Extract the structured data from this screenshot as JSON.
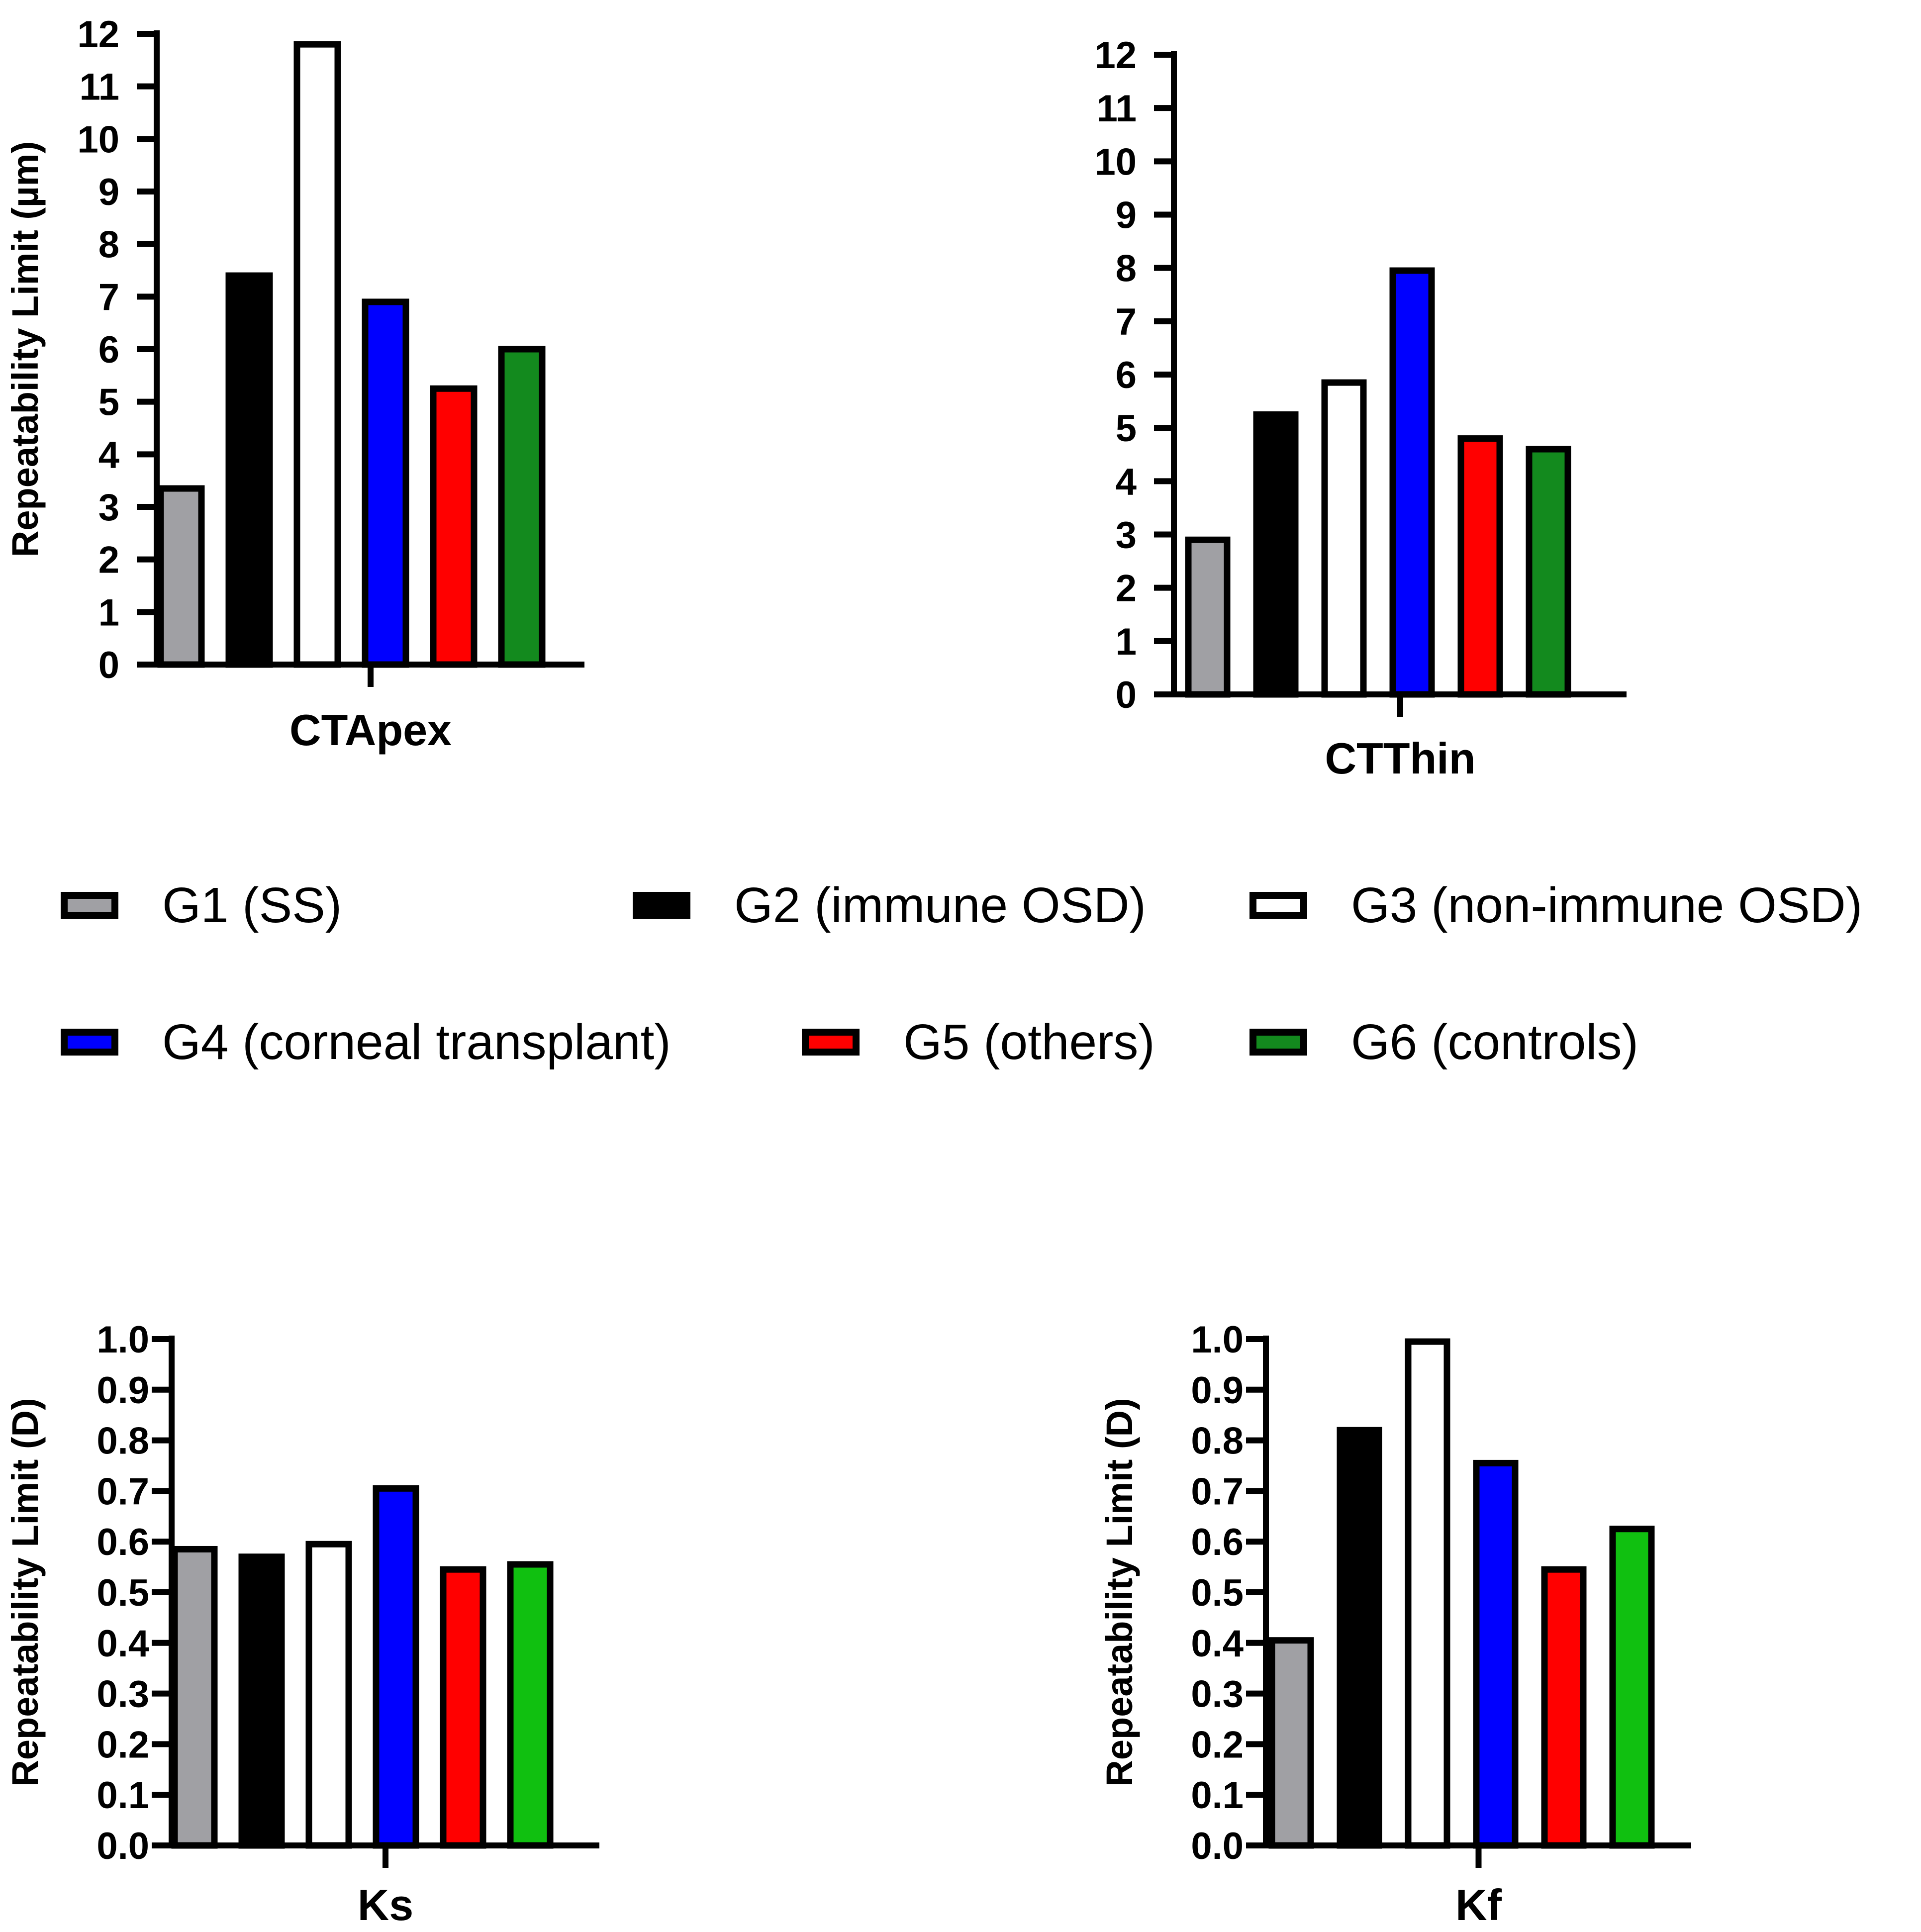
{
  "groups": [
    {
      "key": "g1",
      "label": "G1 (SS)",
      "color": "#a0a0a4"
    },
    {
      "key": "g2",
      "label": "G2 (immune OSD)",
      "color": "#000000"
    },
    {
      "key": "g3",
      "label": "G3 (non-immune OSD)",
      "color": "#ffffff"
    },
    {
      "key": "g4",
      "label": "G4 (corneal transplant)",
      "color": "#0000ff"
    },
    {
      "key": "g5",
      "label": "G5 (others)",
      "color": "#ff0000"
    },
    {
      "key": "g6",
      "label": "G6 (controls)",
      "color": "#138a1e"
    }
  ],
  "chart_data": [
    {
      "id": "ctapex",
      "type": "bar",
      "title": "",
      "xlabel": "CTApex",
      "ylabel": "Repeatability Limit (µm)",
      "ylim": [
        0,
        12
      ],
      "yticks": [
        "0",
        "1",
        "2",
        "3",
        "4",
        "5",
        "6",
        "7",
        "8",
        "9",
        "10",
        "11",
        "12"
      ],
      "categories": [
        "G1 (SS)",
        "G2 (immune OSD)",
        "G3 (non-immune OSD)",
        "G4 (corneal transplant)",
        "G5 (others)",
        "G6 (controls)"
      ],
      "values": [
        3.35,
        7.4,
        11.8,
        6.9,
        5.25,
        6.0
      ],
      "colors": [
        "#a0a0a4",
        "#000000",
        "#ffffff",
        "#0000ff",
        "#ff0000",
        "#138a1e"
      ]
    },
    {
      "id": "ctthin",
      "type": "bar",
      "title": "",
      "xlabel": "CTThin",
      "ylabel": "",
      "ylim": [
        0,
        12
      ],
      "yticks": [
        "0",
        "1",
        "2",
        "3",
        "4",
        "5",
        "6",
        "7",
        "8",
        "9",
        "10",
        "11",
        "12"
      ],
      "categories": [
        "G1 (SS)",
        "G2 (immune OSD)",
        "G3 (non-immune OSD)",
        "G4 (corneal transplant)",
        "G5 (others)",
        "G6 (controls)"
      ],
      "values": [
        2.9,
        5.25,
        5.85,
        7.95,
        4.8,
        4.6
      ],
      "colors": [
        "#a0a0a4",
        "#000000",
        "#ffffff",
        "#0000ff",
        "#ff0000",
        "#138a1e"
      ]
    },
    {
      "id": "ks",
      "type": "bar",
      "title": "",
      "xlabel": "Ks",
      "ylabel": "Repeatability Limit (D)",
      "ylim": [
        0,
        1.0
      ],
      "yticks": [
        "0.0",
        "0.1",
        "0.2",
        "0.3",
        "0.4",
        "0.5",
        "0.6",
        "0.7",
        "0.8",
        "0.9",
        "1.0"
      ],
      "categories": [
        "G1 (SS)",
        "G2 (immune OSD)",
        "G3 (non-immune OSD)",
        "G4 (corneal transplant)",
        "G5 (others)",
        "G6 (controls)"
      ],
      "values": [
        0.585,
        0.57,
        0.595,
        0.705,
        0.545,
        0.555
      ],
      "colors": [
        "#a0a0a4",
        "#000000",
        "#ffffff",
        "#0000ff",
        "#ff0000",
        "#10c010"
      ]
    },
    {
      "id": "kf",
      "type": "bar",
      "title": "",
      "xlabel": "Kf",
      "ylabel": "Repeatability Limit (D)",
      "ylim": [
        0,
        1.0
      ],
      "yticks": [
        "0.0",
        "0.1",
        "0.2",
        "0.3",
        "0.4",
        "0.5",
        "0.6",
        "0.7",
        "0.8",
        "0.9",
        "1.0"
      ],
      "categories": [
        "G1 (SS)",
        "G2 (immune OSD)",
        "G3 (non-immune OSD)",
        "G4 (corneal transplant)",
        "G5 (others)",
        "G6 (controls)"
      ],
      "values": [
        0.405,
        0.82,
        0.995,
        0.755,
        0.545,
        0.625
      ],
      "colors": [
        "#a0a0a4",
        "#000000",
        "#ffffff",
        "#0000ff",
        "#ff0000",
        "#10c010"
      ]
    }
  ]
}
